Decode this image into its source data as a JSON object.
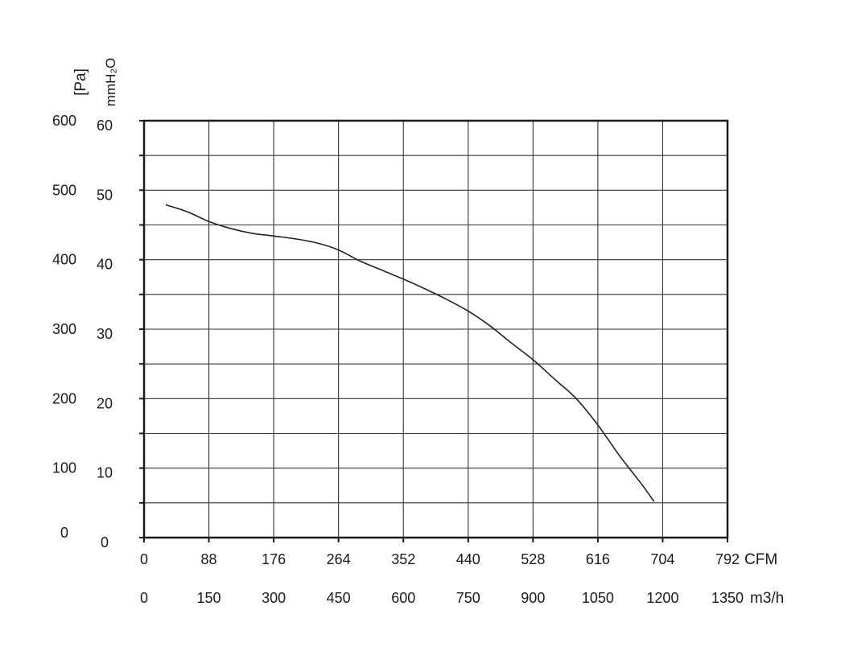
{
  "chart_data": {
    "type": "line",
    "title": "",
    "grid": true,
    "y_axes": [
      {
        "label": "[Pa]",
        "ticks": [
          "0",
          "100",
          "200",
          "300",
          "400",
          "500",
          "600"
        ],
        "range": [
          0,
          600
        ]
      },
      {
        "label": "mmH₂O",
        "ticks": [
          "0",
          "10",
          "20",
          "30",
          "40",
          "50",
          "60"
        ],
        "range": [
          0,
          60
        ]
      }
    ],
    "x_axes": [
      {
        "label": "CFM",
        "ticks": [
          "0",
          "88",
          "176",
          "264",
          "352",
          "440",
          "528",
          "616",
          "704",
          "792"
        ],
        "range": [
          0,
          792
        ]
      },
      {
        "label": "m3/h",
        "ticks": [
          "0",
          "150",
          "300",
          "450",
          "600",
          "750",
          "900",
          "1050",
          "1200",
          "1350"
        ],
        "range": [
          0,
          1350
        ]
      }
    ],
    "series": [
      {
        "x_units": "m3/h",
        "y_units": "Pa",
        "x": [
          50,
          100,
          150,
          200,
          250,
          300,
          350,
          400,
          450,
          500,
          550,
          600,
          650,
          700,
          750,
          800,
          850,
          900,
          950,
          1000,
          1050,
          1100,
          1150,
          1180
        ],
        "y": [
          479,
          469,
          455,
          445,
          438,
          434,
          430,
          424,
          414,
          398,
          385,
          372,
          358,
          343,
          326,
          305,
          280,
          256,
          228,
          200,
          162,
          118,
          78,
          52
        ]
      }
    ]
  }
}
